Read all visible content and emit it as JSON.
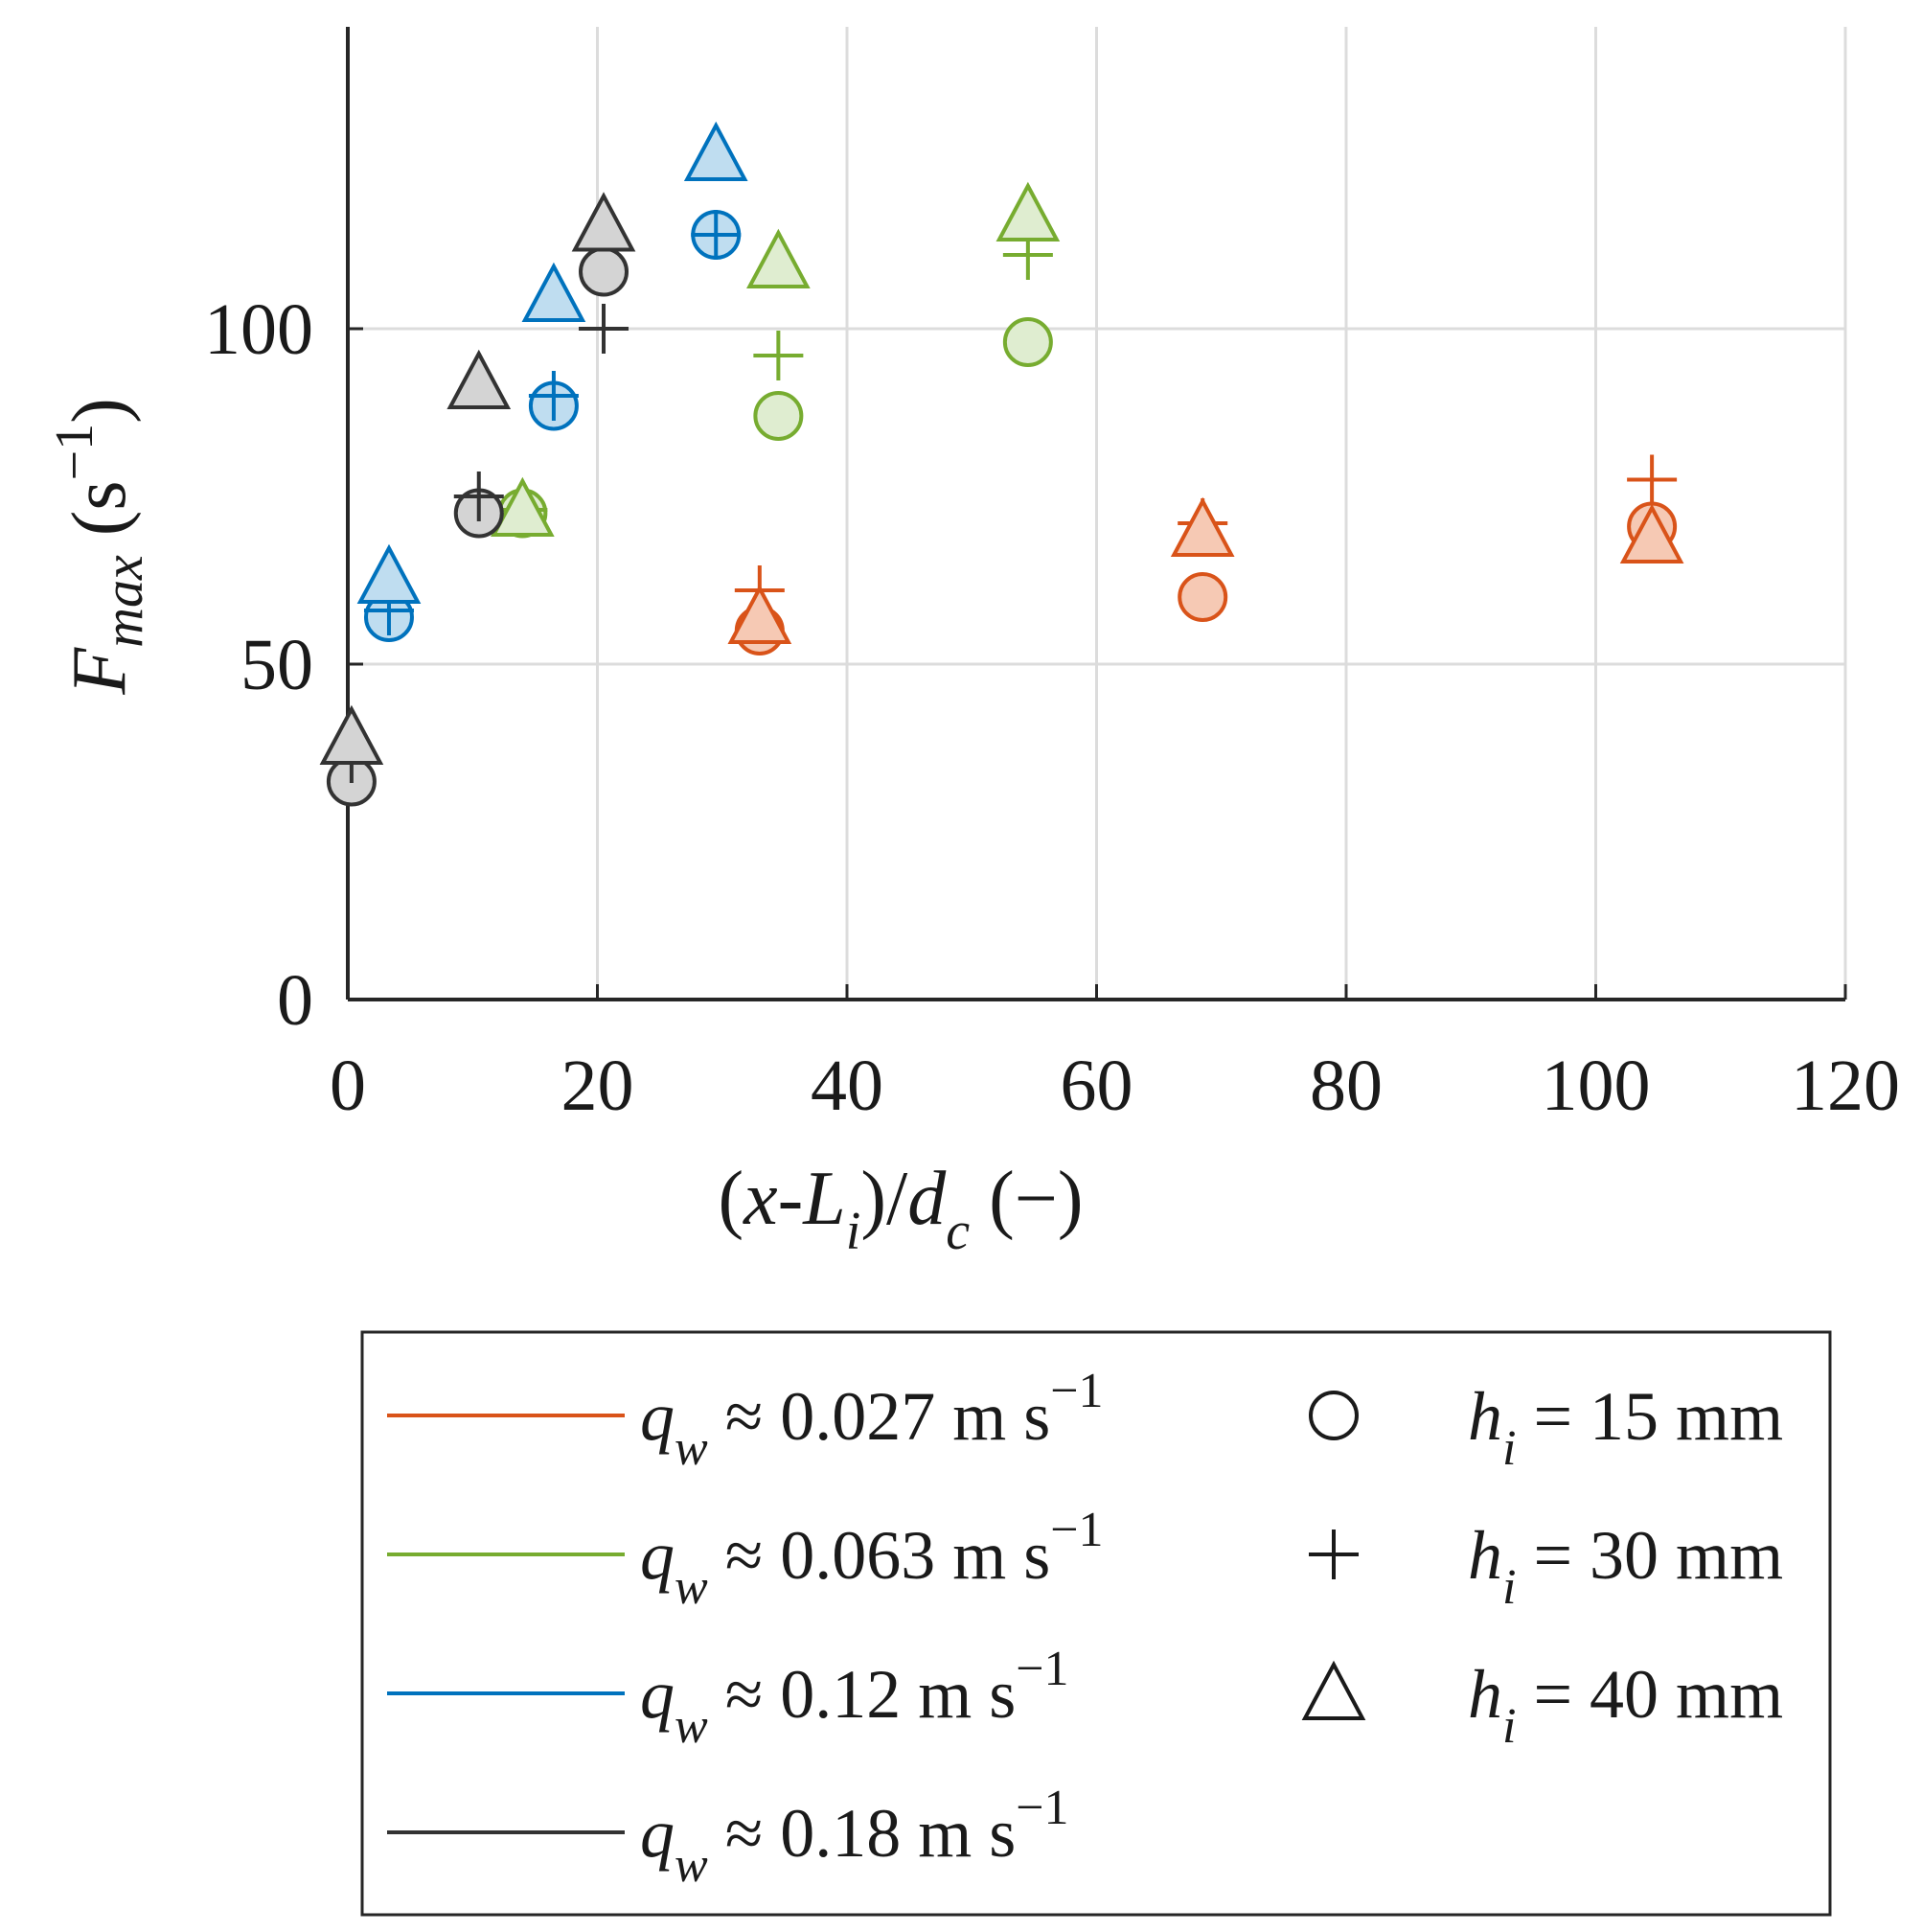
{
  "chart_data": {
    "type": "scatter",
    "title": "",
    "xlabel": {
      "open": "(",
      "x": "x",
      "dash": "-",
      "L": "L",
      "L_sub": "i",
      "slash": ")/",
      "d": "d",
      "d_sub": "c",
      "unit": " (−)"
    },
    "ylabel": {
      "F": "F",
      "sub": "max",
      "unit_open": " (s",
      "unit_exp": "−1",
      "unit_close": ")"
    },
    "xlim": [
      0,
      120
    ],
    "ylim": [
      0,
      145
    ],
    "xticks": [
      0,
      20,
      40,
      60,
      80,
      100,
      120
    ],
    "yticks": [
      0,
      50,
      100
    ],
    "grid": true,
    "legend_position": "below",
    "series": [
      {
        "name": "q_w ≈ 0.027 m s−1",
        "color": "#D95319",
        "fill": "#F6C9B4",
        "points": [
          {
            "x": 33,
            "y": 55,
            "marker": "circle"
          },
          {
            "x": 68.5,
            "y": 60,
            "marker": "circle"
          },
          {
            "x": 104.5,
            "y": 70.5,
            "marker": "circle"
          },
          {
            "x": 33,
            "y": 61,
            "marker": "plus"
          },
          {
            "x": 68.5,
            "y": 71,
            "marker": "plus"
          },
          {
            "x": 104.5,
            "y": 77.5,
            "marker": "plus"
          },
          {
            "x": 33,
            "y": 57,
            "marker": "triangle"
          },
          {
            "x": 68.5,
            "y": 70,
            "marker": "triangle"
          },
          {
            "x": 104.5,
            "y": 69,
            "marker": "triangle"
          }
        ]
      },
      {
        "name": "q_w ≈ 0.063 m s−1",
        "color": "#77AC30",
        "fill": "#DFEDD0",
        "points": [
          {
            "x": 14,
            "y": 72.5,
            "marker": "circle"
          },
          {
            "x": 34.5,
            "y": 87,
            "marker": "circle"
          },
          {
            "x": 54.5,
            "y": 98,
            "marker": "circle"
          },
          {
            "x": 14,
            "y": 73,
            "marker": "plus"
          },
          {
            "x": 34.5,
            "y": 96,
            "marker": "plus"
          },
          {
            "x": 54.5,
            "y": 111,
            "marker": "plus"
          },
          {
            "x": 14,
            "y": 73,
            "marker": "triangle"
          },
          {
            "x": 34.5,
            "y": 110,
            "marker": "triangle"
          },
          {
            "x": 54.5,
            "y": 117,
            "marker": "triangle"
          }
        ]
      },
      {
        "name": "q_w ≈ 0.12 m s−1",
        "color": "#0072BD",
        "fill": "#BFDDF0",
        "points": [
          {
            "x": 3.3,
            "y": 57,
            "marker": "circle"
          },
          {
            "x": 16.5,
            "y": 88.5,
            "marker": "circle"
          },
          {
            "x": 29.5,
            "y": 114,
            "marker": "circle"
          },
          {
            "x": 3.3,
            "y": 58,
            "marker": "plus"
          },
          {
            "x": 16.5,
            "y": 90,
            "marker": "plus"
          },
          {
            "x": 29.5,
            "y": 114,
            "marker": "plus"
          },
          {
            "x": 3.3,
            "y": 63,
            "marker": "triangle"
          },
          {
            "x": 16.5,
            "y": 105,
            "marker": "triangle"
          },
          {
            "x": 29.5,
            "y": 126,
            "marker": "triangle"
          }
        ]
      },
      {
        "name": "q_w ≈ 0.18 m s−1",
        "color": "#333333",
        "fill": "#D4D4D4",
        "points": [
          {
            "x": 0.3,
            "y": 32.5,
            "marker": "circle"
          },
          {
            "x": 10.5,
            "y": 72.5,
            "marker": "circle"
          },
          {
            "x": 20.5,
            "y": 108.5,
            "marker": "circle"
          },
          {
            "x": 0.3,
            "y": 36,
            "marker": "plus"
          },
          {
            "x": 10.5,
            "y": 75,
            "marker": "plus"
          },
          {
            "x": 20.5,
            "y": 100,
            "marker": "plus"
          },
          {
            "x": 0.3,
            "y": 39,
            "marker": "triangle"
          },
          {
            "x": 10.5,
            "y": 92,
            "marker": "triangle"
          },
          {
            "x": 20.5,
            "y": 115.5,
            "marker": "triangle"
          }
        ]
      }
    ],
    "legend": {
      "lines": [
        {
          "q": "q",
          "sub": "w",
          "text": " ≈ 0.027 m s",
          "exp": "−1",
          "color": "#D95319"
        },
        {
          "q": "q",
          "sub": "w",
          "text": " ≈ 0.063 m s",
          "exp": "−1",
          "color": "#77AC30"
        },
        {
          "q": "q",
          "sub": "w",
          "text": " ≈ 0.12 m s",
          "exp": "−1",
          "color": "#0072BD"
        },
        {
          "q": "q",
          "sub": "w",
          "text": " ≈ 0.18 m s",
          "exp": "−1",
          "color": "#333333"
        }
      ],
      "markers": [
        {
          "marker": "circle",
          "h": "h",
          "sub": "i",
          "text": " = 15 mm"
        },
        {
          "marker": "plus",
          "h": "h",
          "sub": "i",
          "text": " = 30 mm"
        },
        {
          "marker": "triangle",
          "h": "h",
          "sub": "i",
          "text": " = 40 mm"
        }
      ]
    }
  }
}
